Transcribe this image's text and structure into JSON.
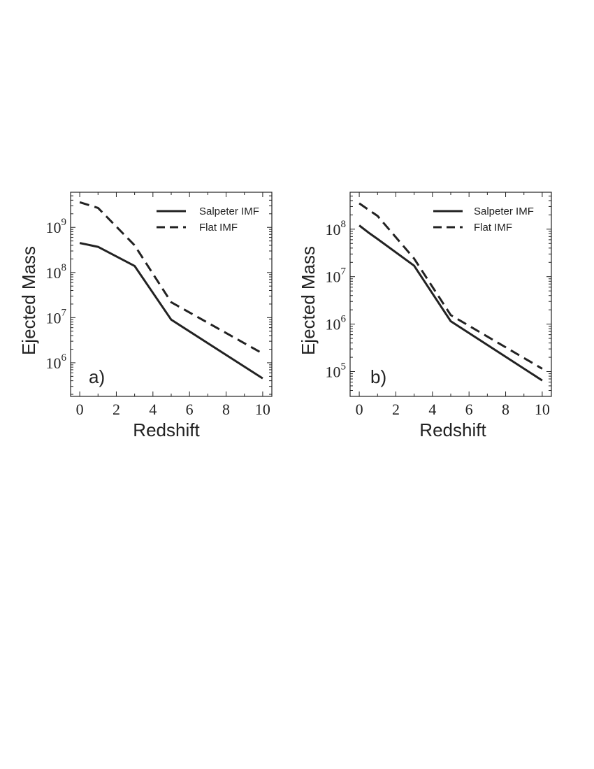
{
  "chart_data": [
    {
      "type": "line",
      "panel_label": "a)",
      "xlabel": "Redshift",
      "ylabel": "Ejected Mass",
      "x_scale": "linear",
      "y_scale": "log",
      "xlim": [
        -0.5,
        10.5
      ],
      "ylim": [
        180000,
        6000000000
      ],
      "x_ticks": [
        0,
        2,
        4,
        6,
        8,
        10
      ],
      "y_tick_exponents": [
        6,
        7,
        8,
        9
      ],
      "legend": {
        "position": "top-right",
        "entries": [
          "Salpeter IMF",
          "Flat IMF"
        ]
      },
      "series": [
        {
          "name": "Salpeter IMF",
          "style": "solid",
          "x": [
            0,
            1,
            3,
            5,
            10
          ],
          "y": [
            450000000,
            370000000,
            140000000,
            9000000,
            450000
          ]
        },
        {
          "name": "Flat IMF",
          "style": "dashed",
          "x": [
            0,
            1,
            3,
            5,
            10
          ],
          "y": [
            3600000000,
            2700000000,
            400000000,
            22000000,
            1600000
          ]
        }
      ]
    },
    {
      "type": "line",
      "panel_label": "b)",
      "xlabel": "Redshift",
      "ylabel": "Ejected Mass",
      "x_scale": "linear",
      "y_scale": "log",
      "xlim": [
        -0.5,
        10.5
      ],
      "ylim": [
        30000,
        600000000
      ],
      "x_ticks": [
        0,
        2,
        4,
        6,
        8,
        10
      ],
      "y_tick_exponents": [
        5,
        6,
        7,
        8
      ],
      "legend": {
        "position": "top-right",
        "entries": [
          "Salpeter IMF",
          "Flat IMF"
        ]
      },
      "series": [
        {
          "name": "Salpeter IMF",
          "style": "solid",
          "x": [
            0,
            0.5,
            1,
            3,
            5,
            10
          ],
          "y": [
            120000000,
            85000000,
            62000000,
            17000000,
            1150000,
            65000
          ]
        },
        {
          "name": "Flat IMF",
          "style": "dashed",
          "x": [
            0,
            1,
            3,
            5,
            10
          ],
          "y": [
            350000000,
            190000000,
            24000000,
            1550000,
            115000
          ]
        }
      ]
    }
  ]
}
